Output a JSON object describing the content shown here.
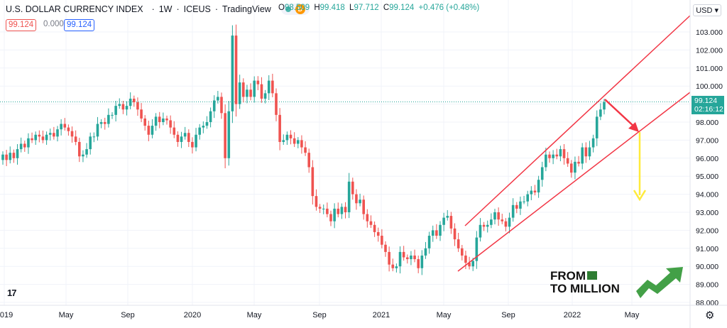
{
  "header": {
    "title": "U.S. DOLLAR CURRENCY INDEX",
    "interval": "1W",
    "exchange": "ICEUS",
    "source": "TradingView",
    "delay_badge": "D"
  },
  "ohlc": {
    "o_label": "O",
    "o": "98.509",
    "h_label": "H",
    "h": "99.418",
    "l_label": "L",
    "l": "97.712",
    "c_label": "C",
    "c": "99.124",
    "change": "+0.476 (+0.48%)"
  },
  "boxes": {
    "left": "99.124",
    "mid": "0.000",
    "right": "99.124"
  },
  "currency": "USD",
  "last_price": {
    "value": "99.124",
    "countdown": "02:16:12"
  },
  "watermark": {
    "line1": "FROM",
    "line2": "TO MILLION"
  },
  "colors": {
    "up": "#26a69a",
    "down": "#ef5350",
    "channel": "#f23645",
    "arrow_down": "#f23645",
    "target": "#ffeb3b"
  },
  "chart_data": {
    "type": "candlestick",
    "ylim": [
      88,
      104
    ],
    "y_ticks": [
      88,
      89,
      90,
      91,
      92,
      93,
      94,
      95,
      96,
      97,
      98,
      99,
      100,
      101,
      102,
      103
    ],
    "x_ticks": [
      "2019",
      "May",
      "Sep",
      "2020",
      "May",
      "Sep",
      "2021",
      "May",
      "Sep",
      "2022",
      "May"
    ],
    "last_value": 99.124,
    "closes": [
      96.2,
      95.9,
      96.3,
      96.0,
      96.5,
      96.8,
      96.6,
      97.1,
      97.0,
      97.3,
      97.2,
      97.0,
      97.3,
      97.4,
      97.2,
      97.6,
      97.9,
      97.7,
      97.5,
      97.2,
      96.9,
      96.1,
      96.2,
      96.5,
      97.2,
      97.2,
      97.9,
      98.0,
      97.9,
      98.4,
      98.4,
      98.9,
      99.0,
      98.7,
      98.9,
      99.3,
      99.1,
      98.7,
      98.2,
      97.8,
      97.3,
      97.8,
      98.3,
      98.0,
      98.2,
      98.1,
      97.7,
      97.3,
      96.9,
      97.2,
      97.4,
      96.9,
      96.6,
      97.3,
      97.7,
      97.8,
      98.0,
      98.6,
      99.2,
      99.4,
      98.5,
      96.0,
      98.6,
      102.8,
      99.0,
      100.2,
      99.4,
      99.8,
      99.4,
      100.3,
      100.1,
      99.3,
      99.6,
      100.3,
      99.6,
      98.4,
      96.9,
      97.0,
      97.3,
      97.1,
      96.8,
      97.0,
      96.6,
      96.3,
      95.5,
      93.9,
      93.3,
      93.2,
      93.2,
      92.9,
      92.5,
      93.2,
      92.9,
      93.3,
      93.0,
      94.7,
      94.0,
      93.5,
      93.7,
      92.9,
      92.5,
      92.3,
      91.9,
      91.7,
      91.2,
      90.8,
      90.1,
      89.9,
      90.0,
      90.8,
      90.5,
      90.4,
      90.6,
      90.4,
      89.9,
      90.6,
      91.0,
      91.7,
      92.0,
      91.7,
      92.3,
      92.7,
      92.8,
      92.1,
      91.5,
      91.0,
      90.6,
      90.2,
      90.0,
      90.3,
      91.6,
      92.3,
      92.2,
      92.3,
      92.6,
      93.0,
      92.6,
      92.5,
      92.2,
      92.7,
      93.4,
      93.2,
      93.6,
      93.6,
      94.0,
      94.2,
      94.1,
      94.8,
      95.5,
      96.2,
      96.0,
      96.2,
      96.1,
      96.5,
      96.0,
      95.7,
      95.2,
      95.8,
      95.7,
      96.6,
      96.1,
      96.6,
      97.1,
      98.3,
      98.7,
      99.1
    ]
  }
}
